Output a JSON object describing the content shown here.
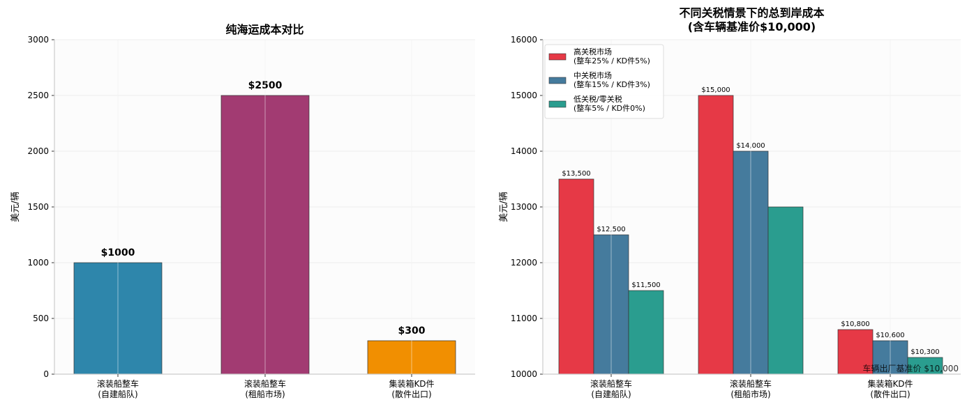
{
  "chart_data": [
    {
      "type": "bar",
      "title": "纯海运成本对比",
      "xlabel": "",
      "ylabel": "美元/辆",
      "categories": [
        "滚装船整车\n(自建船队)",
        "滚装船整车\n(租船市场)",
        "集装箱KD件\n(散件出口)"
      ],
      "values": [
        1000,
        2500,
        300
      ],
      "data_labels": [
        "$1000",
        "$2500",
        "$300"
      ],
      "colors": [
        "#2e86ab",
        "#a23b72",
        "#f18f01"
      ],
      "ylim": [
        0,
        3000
      ],
      "yticks": [
        0,
        500,
        1000,
        1500,
        2000,
        2500,
        3000
      ],
      "grid": true
    },
    {
      "type": "bar",
      "title": "不同关税情景下的总到岸成本\n(含车辆基准价$10,000)",
      "xlabel": "",
      "ylabel": "美元/辆",
      "categories": [
        "滚装船整车\n(自建船队)",
        "滚装船整车\n(租船市场)",
        "集装箱KD件\n(散件出口)"
      ],
      "series": [
        {
          "name": "高关税市场\n(整车25% / KD件5%)",
          "color": "#e63946",
          "values": [
            13500,
            15000,
            10800
          ],
          "labels": [
            "$13,500",
            "$15,000",
            "$10,800"
          ]
        },
        {
          "name": "中关税市场\n(整车15% / KD件3%)",
          "color": "#457b9d",
          "values": [
            12500,
            14000,
            10600
          ],
          "labels": [
            "$12,500",
            "$14,000",
            "$10,600"
          ]
        },
        {
          "name": "低关税/零关税\n(整车5% / KD件0%)",
          "color": "#2a9d8f",
          "values": [
            11500,
            13000,
            10300
          ],
          "labels": [
            "$11,500",
            "",
            "$10,300"
          ]
        }
      ],
      "ylim": [
        10000,
        16000
      ],
      "yticks": [
        10000,
        11000,
        12000,
        13000,
        14000,
        15000,
        16000
      ],
      "grid": true,
      "legend": "top-left",
      "annotation": "车辆出厂基准价 $10,000"
    }
  ]
}
